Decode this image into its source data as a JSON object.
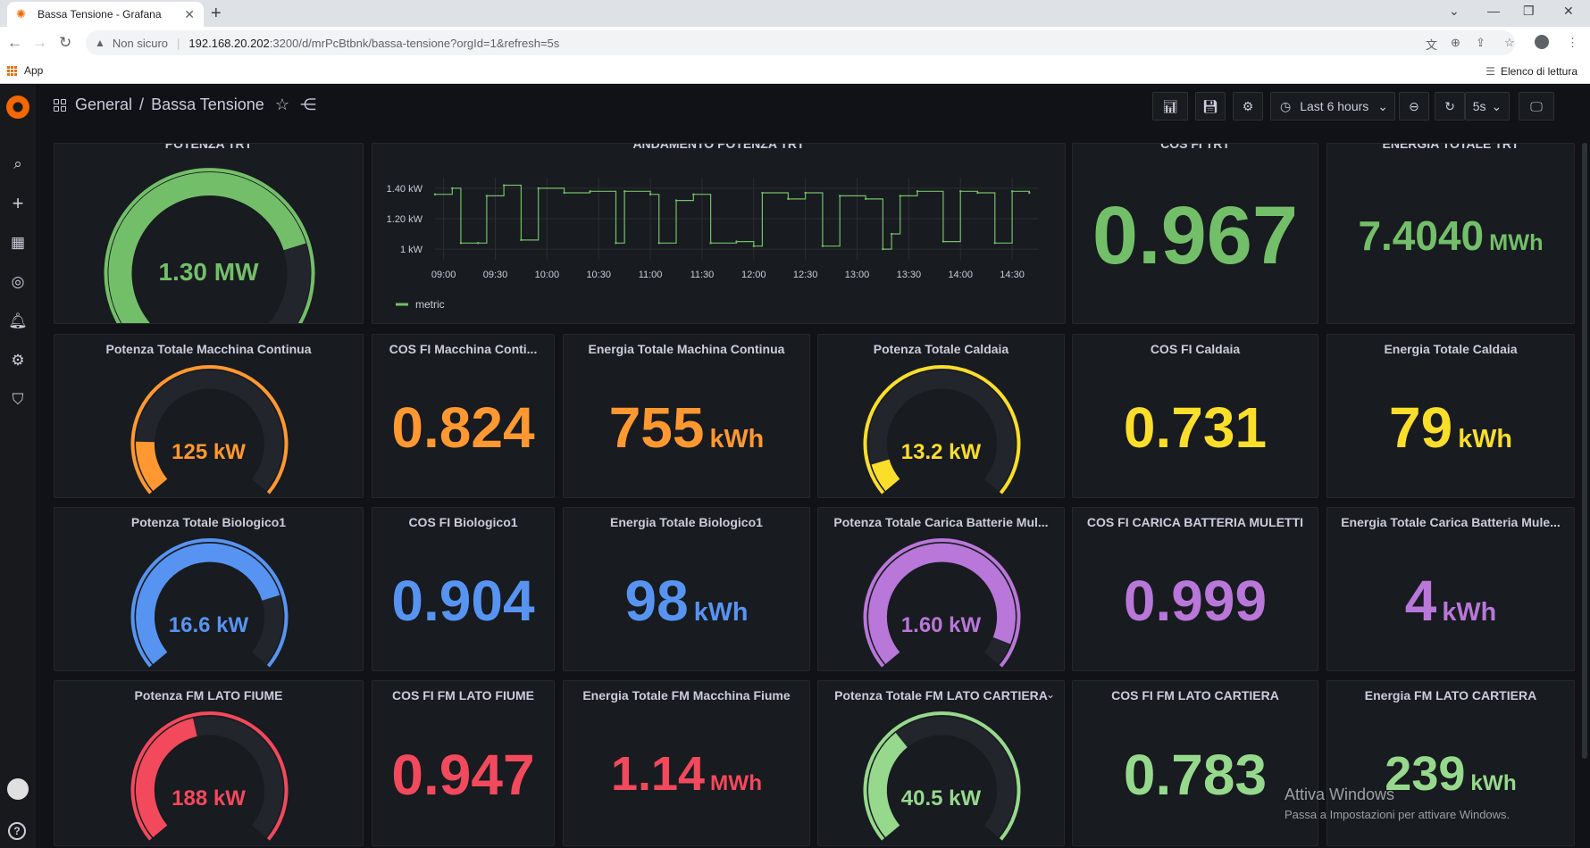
{
  "browser": {
    "tab_title": "Bassa Tensione - Grafana",
    "tab_close": "✕",
    "new_tab": "+",
    "insecure_label": "Non sicuro",
    "url_host": "192.168.20.202",
    "url_path": ":3200/d/mrPcBtbnk/bassa-tensione?orgId=1&refresh=5s",
    "bookmark_apps": "App",
    "reading_list": "Elenco di lettura"
  },
  "header": {
    "folder": "General",
    "separator": "/",
    "dashboard_title": "Bassa Tensione",
    "time_range": "Last 6 hours",
    "refresh_interval": "5s"
  },
  "panels": {
    "potenza_trt": {
      "title": "POTENZA TRT",
      "value": "1.30 MW",
      "fraction": 0.78,
      "color": "#73bf69"
    },
    "andamento": {
      "title": "ANDAMENTO POTENZA TRT",
      "legend": "metric",
      "color": "#73bf69"
    },
    "cosfi_trt": {
      "title": "COS FI TRT",
      "value": "0.967",
      "color": "#73bf69"
    },
    "energia_trt": {
      "title": "ENERGIA TOTALE TRT",
      "value": "7.4040",
      "unit": "MWh",
      "color": "#73bf69"
    },
    "pot_macchina": {
      "title": "Potenza Totale Macchina Continua",
      "value": "125 kW",
      "fraction": 0.16,
      "color": "#ff9830"
    },
    "cos_macchina": {
      "title": "COS FI Macchina Conti...",
      "value": "0.824",
      "color": "#ff9830"
    },
    "en_macchina": {
      "title": "Energia Totale Machina Continua",
      "value": "755",
      "unit": "kWh",
      "color": "#ff9830"
    },
    "pot_caldaia": {
      "title": "Potenza Totale Caldaia",
      "value": "13.2 kW",
      "fraction": 0.09,
      "color": "#fade2a"
    },
    "cos_caldaia": {
      "title": "COS FI Caldaia",
      "value": "0.731",
      "color": "#fade2a"
    },
    "en_caldaia": {
      "title": "Energia Totale Caldaia",
      "value": "79",
      "unit": "kWh",
      "color": "#fade2a"
    },
    "pot_bio": {
      "title": "Potenza Totale Biologico1",
      "value": "16.6 kW",
      "fraction": 0.78,
      "color": "#5794f2"
    },
    "cos_bio": {
      "title": "COS FI Biologico1",
      "value": "0.904",
      "color": "#5794f2"
    },
    "en_bio": {
      "title": "Energia Totale Biologico1",
      "value": "98",
      "unit": "kWh",
      "color": "#5794f2"
    },
    "pot_batt": {
      "title": "Potenza Totale Carica Batterie Mul...",
      "value": "1.60 kW",
      "fraction": 0.93,
      "color": "#b877d9"
    },
    "cos_batt": {
      "title": "COS FI CARICA BATTERIA MULETTI",
      "value": "0.999",
      "color": "#b877d9"
    },
    "en_batt": {
      "title": "Energia Totale Carica Batteria Mule...",
      "value": "4",
      "unit": "kWh",
      "color": "#b877d9"
    },
    "pot_fiume": {
      "title": "Potenza FM LATO FIUME",
      "value": "188 kW",
      "fraction": 0.45,
      "color": "#f2495c"
    },
    "cos_fiume": {
      "title": "COS FI FM LATO FIUME",
      "value": "0.947",
      "color": "#f2495c"
    },
    "en_fiume": {
      "title": "Energia Totale FM Macchina Fiume",
      "value": "1.14",
      "unit": "MWh",
      "color": "#f2495c"
    },
    "pot_cartiera": {
      "title": "Potenza Totale FM LATO CARTIERA",
      "title_menu": "⌄",
      "value": "40.5 kW",
      "fraction": 0.35,
      "color": "#96d98d"
    },
    "cos_cartiera": {
      "title": "COS FI FM LATO CARTIERA",
      "value": "0.783",
      "color": "#96d98d"
    },
    "en_cartiera": {
      "title": "Energia FM LATO CARTIERA",
      "value": "239",
      "unit": "kWh",
      "color": "#96d98d"
    }
  },
  "chart_data": {
    "type": "line",
    "title": "ANDAMENTO POTENZA TRT",
    "x_ticks": [
      "09:00",
      "09:30",
      "10:00",
      "10:30",
      "11:00",
      "11:30",
      "12:00",
      "12:30",
      "13:00",
      "13:30",
      "14:00",
      "14:30"
    ],
    "y_ticks": [
      "1 kW",
      "1.20 kW",
      "1.40 kW"
    ],
    "ylim": [
      0.93,
      1.47
    ],
    "series": [
      {
        "name": "metric",
        "x": [
          "08:55",
          "09:05",
          "09:10",
          "09:20",
          "09:25",
          "09:35",
          "09:45",
          "09:55",
          "10:10",
          "10:25",
          "10:40",
          "10:45",
          "11:00",
          "11:05",
          "11:15",
          "11:25",
          "11:35",
          "11:50",
          "12:00",
          "12:05",
          "12:20",
          "12:30",
          "12:40",
          "12:50",
          "13:05",
          "13:15",
          "13:20",
          "13:25",
          "13:35",
          "13:50",
          "14:00",
          "14:10",
          "14:20",
          "14:30",
          "14:40"
        ],
        "y": [
          1.36,
          1.4,
          1.04,
          1.04,
          1.35,
          1.42,
          1.06,
          1.4,
          1.37,
          1.38,
          1.04,
          1.38,
          1.36,
          1.04,
          1.32,
          1.36,
          1.04,
          1.05,
          1.02,
          1.37,
          1.33,
          1.37,
          1.02,
          1.35,
          1.33,
          1.0,
          1.1,
          1.35,
          1.38,
          1.05,
          1.38,
          1.37,
          1.04,
          1.38,
          1.37
        ]
      }
    ],
    "legend": "bottom-left",
    "grid": true
  }
}
